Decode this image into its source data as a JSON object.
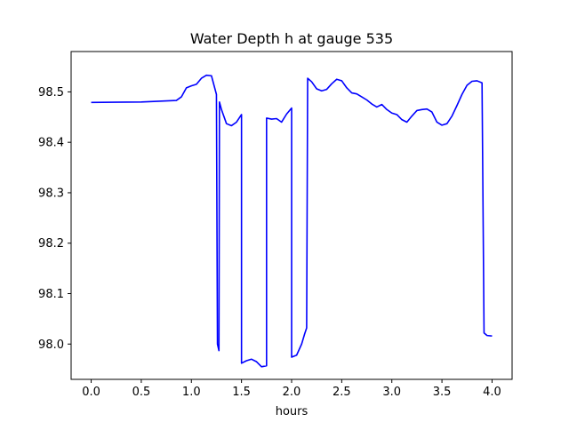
{
  "chart_data": {
    "type": "line",
    "title": "Water Depth h at gauge 535",
    "xlabel": "hours",
    "ylabel": "",
    "xlim": [
      -0.2,
      4.2
    ],
    "ylim": [
      97.93,
      98.58
    ],
    "xticks": [
      0.0,
      0.5,
      1.0,
      1.5,
      2.0,
      2.5,
      3.0,
      3.5,
      4.0
    ],
    "xtick_labels": [
      "0.0",
      "0.5",
      "1.0",
      "1.5",
      "2.0",
      "2.5",
      "3.0",
      "3.5",
      "4.0"
    ],
    "yticks": [
      98.0,
      98.1,
      98.2,
      98.3,
      98.4,
      98.5
    ],
    "ytick_labels": [
      "98.0",
      "98.1",
      "98.2",
      "98.3",
      "98.4",
      "98.5"
    ],
    "grid": false,
    "series": [
      {
        "color": "#0000ff",
        "points": [
          [
            0.0,
            98.479
          ],
          [
            0.5,
            98.48
          ],
          [
            0.85,
            98.483
          ],
          [
            0.9,
            98.49
          ],
          [
            0.95,
            98.508
          ],
          [
            1.0,
            98.512
          ],
          [
            1.05,
            98.515
          ],
          [
            1.1,
            98.527
          ],
          [
            1.15,
            98.533
          ],
          [
            1.2,
            98.532
          ],
          [
            1.25,
            98.495
          ],
          [
            1.26,
            98.0
          ],
          [
            1.275,
            97.987
          ],
          [
            1.28,
            98.48
          ],
          [
            1.3,
            98.465
          ],
          [
            1.35,
            98.437
          ],
          [
            1.4,
            98.433
          ],
          [
            1.45,
            98.44
          ],
          [
            1.5,
            98.455
          ],
          [
            1.5,
            97.962
          ],
          [
            1.55,
            97.967
          ],
          [
            1.6,
            97.97
          ],
          [
            1.65,
            97.965
          ],
          [
            1.7,
            97.955
          ],
          [
            1.75,
            97.957
          ],
          [
            1.75,
            98.448
          ],
          [
            1.8,
            98.446
          ],
          [
            1.85,
            98.447
          ],
          [
            1.9,
            98.44
          ],
          [
            1.95,
            98.456
          ],
          [
            2.0,
            98.468
          ],
          [
            2.0,
            97.974
          ],
          [
            2.05,
            97.978
          ],
          [
            2.1,
            98.0
          ],
          [
            2.13,
            98.02
          ],
          [
            2.15,
            98.032
          ],
          [
            2.16,
            98.527
          ],
          [
            2.2,
            98.52
          ],
          [
            2.25,
            98.506
          ],
          [
            2.3,
            98.502
          ],
          [
            2.35,
            98.505
          ],
          [
            2.4,
            98.516
          ],
          [
            2.45,
            98.525
          ],
          [
            2.5,
            98.522
          ],
          [
            2.55,
            98.508
          ],
          [
            2.6,
            98.498
          ],
          [
            2.65,
            98.496
          ],
          [
            2.7,
            98.49
          ],
          [
            2.75,
            98.484
          ],
          [
            2.8,
            98.476
          ],
          [
            2.85,
            98.47
          ],
          [
            2.9,
            98.475
          ],
          [
            2.95,
            98.465
          ],
          [
            3.0,
            98.458
          ],
          [
            3.05,
            98.455
          ],
          [
            3.1,
            98.445
          ],
          [
            3.15,
            98.44
          ],
          [
            3.2,
            98.452
          ],
          [
            3.25,
            98.463
          ],
          [
            3.3,
            98.465
          ],
          [
            3.35,
            98.466
          ],
          [
            3.4,
            98.46
          ],
          [
            3.45,
            98.44
          ],
          [
            3.5,
            98.434
          ],
          [
            3.55,
            98.437
          ],
          [
            3.6,
            98.452
          ],
          [
            3.65,
            98.473
          ],
          [
            3.7,
            98.495
          ],
          [
            3.75,
            98.513
          ],
          [
            3.8,
            98.521
          ],
          [
            3.85,
            98.522
          ],
          [
            3.9,
            98.518
          ],
          [
            3.92,
            98.022
          ],
          [
            3.95,
            98.017
          ],
          [
            4.0,
            98.016
          ]
        ]
      }
    ]
  }
}
